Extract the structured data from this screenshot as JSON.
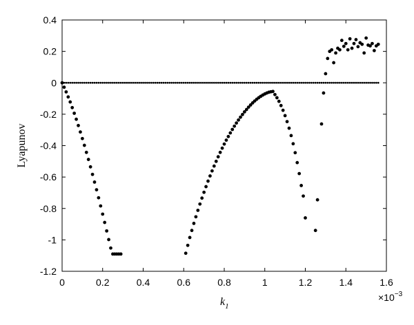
{
  "chart_data": {
    "type": "scatter",
    "title": "",
    "xlabel": "k",
    "xlabel_subscript": "1",
    "ylabel": "Lyapunov",
    "x_exponent_label_base": "×10",
    "x_exponent_label_power": "−3",
    "xlim": [
      0,
      1.6
    ],
    "ylim": [
      -1.2,
      0.4
    ],
    "x_ticks": [
      "0",
      "0.2",
      "0.4",
      "0.6",
      "0.8",
      "1",
      "1.2",
      "1.4",
      "1.6"
    ],
    "y_ticks": [
      "0.4",
      "0.2",
      "0",
      "-0.2",
      "-0.4",
      "-0.6",
      "-0.8",
      "-1",
      "-1.2"
    ],
    "grid": false,
    "marker_color": "#000000",
    "series": [
      {
        "role": "zero-exponent",
        "x": [
          0.0,
          0.01,
          0.02,
          0.03,
          0.04,
          0.05,
          0.06,
          0.07,
          0.08,
          0.09,
          0.1,
          0.11,
          0.12,
          0.13,
          0.14,
          0.15,
          0.16,
          0.17,
          0.18,
          0.19,
          0.2,
          0.21,
          0.22,
          0.23,
          0.24,
          0.25,
          0.26,
          0.27,
          0.28,
          0.29,
          0.3,
          0.31,
          0.32,
          0.33,
          0.34,
          0.35,
          0.36,
          0.37,
          0.38,
          0.39,
          0.4,
          0.41,
          0.42,
          0.43,
          0.44,
          0.45,
          0.46,
          0.47,
          0.48,
          0.49,
          0.5,
          0.51,
          0.52,
          0.53,
          0.54,
          0.55,
          0.56,
          0.57,
          0.58,
          0.59,
          0.6,
          0.61,
          0.62,
          0.63,
          0.64,
          0.65,
          0.66,
          0.67,
          0.68,
          0.69,
          0.7,
          0.71,
          0.72,
          0.73,
          0.74,
          0.75,
          0.76,
          0.77,
          0.78,
          0.79,
          0.8,
          0.81,
          0.82,
          0.83,
          0.84,
          0.85,
          0.86,
          0.87,
          0.88,
          0.89,
          0.9,
          0.91,
          0.92,
          0.93,
          0.94,
          0.95,
          0.96,
          0.97,
          0.98,
          0.99,
          1.0,
          1.01,
          1.02,
          1.03,
          1.04,
          1.05,
          1.06,
          1.07,
          1.08,
          1.09,
          1.1,
          1.11,
          1.12,
          1.13,
          1.14,
          1.15,
          1.16,
          1.17,
          1.18,
          1.19,
          1.2,
          1.21,
          1.22,
          1.23,
          1.24,
          1.25,
          1.26,
          1.27,
          1.28,
          1.29,
          1.3,
          1.31,
          1.32,
          1.33,
          1.34,
          1.35,
          1.36,
          1.37,
          1.38,
          1.39,
          1.4,
          1.41,
          1.42,
          1.43,
          1.44,
          1.45,
          1.46,
          1.47,
          1.48,
          1.49,
          1.5,
          1.51,
          1.52,
          1.53,
          1.54,
          1.55,
          1.56
        ],
        "y": [
          0,
          0,
          0,
          0,
          0,
          0,
          0,
          0,
          0,
          0,
          0,
          0,
          0,
          0,
          0,
          0,
          0,
          0,
          0,
          0,
          0,
          0,
          0,
          0,
          0,
          0,
          0,
          0,
          0,
          0,
          0,
          0,
          0,
          0,
          0,
          0,
          0,
          0,
          0,
          0,
          0,
          0,
          0,
          0,
          0,
          0,
          0,
          0,
          0,
          0,
          0,
          0,
          0,
          0,
          0,
          0,
          0,
          0,
          0,
          0,
          0,
          0,
          0,
          0,
          0,
          0,
          0,
          0,
          0,
          0,
          0,
          0,
          0,
          0,
          0,
          0,
          0,
          0,
          0,
          0,
          0,
          0,
          0,
          0,
          0,
          0,
          0,
          0,
          0,
          0,
          0,
          0,
          0,
          0,
          0,
          0,
          0,
          0,
          0,
          0,
          0,
          0,
          0,
          0,
          0,
          0,
          0,
          0,
          0,
          0,
          0,
          0,
          0,
          0,
          0,
          0,
          0,
          0,
          0,
          0,
          0,
          0,
          0,
          0,
          0,
          0,
          0,
          0,
          0,
          0,
          0,
          0,
          0,
          0,
          0,
          0,
          0,
          0,
          0,
          0,
          0,
          0,
          0,
          0,
          0,
          0,
          0,
          0,
          0,
          0,
          0,
          0,
          0,
          0,
          0,
          0,
          0
        ]
      },
      {
        "role": "left-branch",
        "x": [
          0.0,
          0.01,
          0.02,
          0.03,
          0.04,
          0.05,
          0.06,
          0.07,
          0.08,
          0.09,
          0.1,
          0.11,
          0.12,
          0.13,
          0.14,
          0.15,
          0.16,
          0.17,
          0.18,
          0.19,
          0.2,
          0.21,
          0.22,
          0.23,
          0.24,
          0.25,
          0.26,
          0.27,
          0.28,
          0.29
        ],
        "y": [
          0,
          -0.028,
          -0.058,
          -0.09,
          -0.122,
          -0.158,
          -0.194,
          -0.232,
          -0.272,
          -0.313,
          -0.355,
          -0.398,
          -0.443,
          -0.488,
          -0.535,
          -0.583,
          -0.632,
          -0.681,
          -0.732,
          -0.784,
          -0.836,
          -0.889,
          -0.943,
          -0.998,
          -1.052,
          -1.09,
          -1.09,
          -1.09,
          -1.09,
          -1.09
        ]
      },
      {
        "role": "middle-branch",
        "x": [
          0.61,
          0.62,
          0.63,
          0.64,
          0.65,
          0.66,
          0.67,
          0.68,
          0.69,
          0.7,
          0.71,
          0.72,
          0.73,
          0.74,
          0.75,
          0.76,
          0.77,
          0.78,
          0.79,
          0.8,
          0.81,
          0.82,
          0.83,
          0.84,
          0.85,
          0.86,
          0.87,
          0.88,
          0.89,
          0.9,
          0.91,
          0.92,
          0.93,
          0.94,
          0.95,
          0.96,
          0.97,
          0.98,
          0.99,
          1.0,
          1.01,
          1.02,
          1.03,
          1.04
        ],
        "y": [
          -1.085,
          -1.035,
          -0.985,
          -0.94,
          -0.895,
          -0.853,
          -0.812,
          -0.772,
          -0.734,
          -0.697,
          -0.661,
          -0.626,
          -0.593,
          -0.561,
          -0.53,
          -0.5,
          -0.471,
          -0.443,
          -0.416,
          -0.39,
          -0.365,
          -0.342,
          -0.319,
          -0.297,
          -0.276,
          -0.256,
          -0.237,
          -0.219,
          -0.202,
          -0.185,
          -0.17,
          -0.155,
          -0.141,
          -0.128,
          -0.116,
          -0.105,
          -0.095,
          -0.086,
          -0.078,
          -0.071,
          -0.065,
          -0.06,
          -0.057,
          -0.055
        ]
      },
      {
        "role": "right-branch",
        "x": [
          1.05,
          1.06,
          1.07,
          1.08,
          1.09,
          1.1,
          1.11,
          1.12,
          1.13,
          1.14,
          1.15,
          1.16,
          1.17,
          1.18,
          1.19,
          1.2
        ],
        "y": [
          -0.075,
          -0.095,
          -0.118,
          -0.145,
          -0.175,
          -0.209,
          -0.247,
          -0.289,
          -0.336,
          -0.388,
          -0.445,
          -0.508,
          -0.578,
          -0.654,
          -0.721,
          -0.86
        ]
      },
      {
        "role": "transition-and-chaos",
        "x": [
          1.25,
          1.26,
          1.28,
          1.29,
          1.3,
          1.31,
          1.32,
          1.33,
          1.34,
          1.35,
          1.36,
          1.37,
          1.38,
          1.39,
          1.4,
          1.41,
          1.42,
          1.43,
          1.44,
          1.45,
          1.46,
          1.47,
          1.48,
          1.49,
          1.5,
          1.51,
          1.52,
          1.53,
          1.54,
          1.55,
          1.56
        ],
        "y": [
          -0.94,
          -0.745,
          -0.262,
          -0.065,
          0.058,
          0.155,
          0.2,
          0.21,
          0.128,
          0.19,
          0.22,
          0.21,
          0.27,
          0.232,
          0.25,
          0.21,
          0.28,
          0.22,
          0.25,
          0.275,
          0.23,
          0.255,
          0.245,
          0.19,
          0.285,
          0.24,
          0.235,
          0.25,
          0.205,
          0.235,
          0.245
        ]
      }
    ]
  }
}
